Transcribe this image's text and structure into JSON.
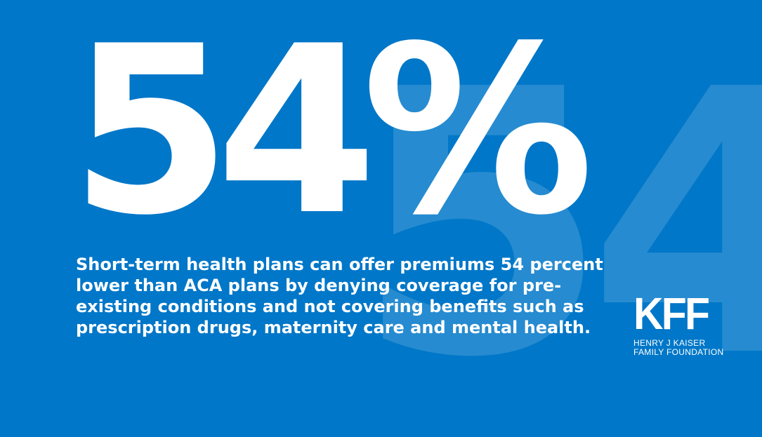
{
  "watermark": "54",
  "stat": "54%",
  "caption": "Short-term health plans can offer premiums 54 percent lower than ACA plans by denying coverage for pre-existing conditions and not covering benefits such as prescription drugs, maternity care and mental health.",
  "logo": {
    "mark": "KFF",
    "line1": "HENRY J KAISER",
    "line2": "FAMILY FOUNDATION"
  },
  "colors": {
    "background": "#0077c8",
    "text": "#ffffff"
  }
}
